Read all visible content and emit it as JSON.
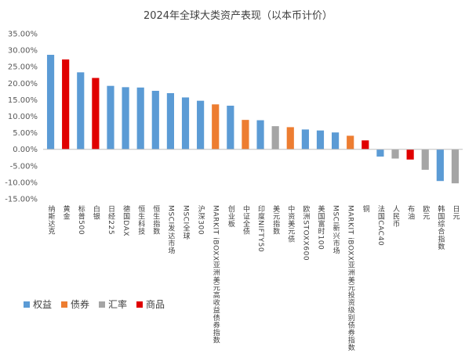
{
  "chart_data": {
    "type": "bar",
    "title": "2024年全球大类资产表现（以本币计价）",
    "xlabel": "",
    "ylabel": "",
    "ylim": [
      -15,
      35
    ],
    "ytick_labels": [
      "35.00%",
      "30.00%",
      "25.00%",
      "20.00%",
      "15.00%",
      "10.00%",
      "5.00%",
      "0.00%",
      "-5.00%",
      "-10.00%",
      "-15.00%"
    ],
    "grid": false,
    "legend_position": "bottom-left",
    "legend": [
      {
        "label": "权益",
        "color": "#5B9BD5"
      },
      {
        "label": "债券",
        "color": "#ED7D31"
      },
      {
        "label": "汇率",
        "color": "#A5A5A5"
      },
      {
        "label": "商品",
        "color": "#E00000"
      }
    ],
    "categories": [
      "纳斯达克",
      "黄金",
      "标普500",
      "白银",
      "日经225",
      "德国DAX",
      "恒生科技",
      "恒生指数",
      "MSCI发达市场",
      "MSCI全球",
      "沪深300",
      "MARKIT iBOXX亚洲美元高收益债券指数",
      "创业板",
      "中证全债",
      "印度NIFTY50",
      "美元指数",
      "中资美元债",
      "欧洲STOXX600",
      "美国富时100",
      "MSCI新兴市场",
      "MARKIT iBOXX亚洲美元投资级别债券指数",
      "铜",
      "法国CAC40",
      "人民币",
      "布油",
      "欧元",
      "韩国综合指数",
      "日元"
    ],
    "values": [
      28.6,
      27.2,
      23.3,
      21.6,
      19.2,
      18.8,
      18.7,
      17.7,
      17.0,
      15.7,
      14.7,
      13.6,
      13.2,
      8.9,
      8.8,
      7.0,
      6.7,
      6.0,
      5.7,
      5.1,
      4.1,
      2.7,
      -2.2,
      -2.8,
      -3.1,
      -6.2,
      -9.6,
      -10.3
    ],
    "groups": [
      "权益",
      "商品",
      "权益",
      "商品",
      "权益",
      "权益",
      "权益",
      "权益",
      "权益",
      "权益",
      "权益",
      "债券",
      "权益",
      "债券",
      "权益",
      "汇率",
      "债券",
      "权益",
      "权益",
      "权益",
      "债券",
      "商品",
      "权益",
      "汇率",
      "商品",
      "汇率",
      "权益",
      "汇率"
    ]
  }
}
